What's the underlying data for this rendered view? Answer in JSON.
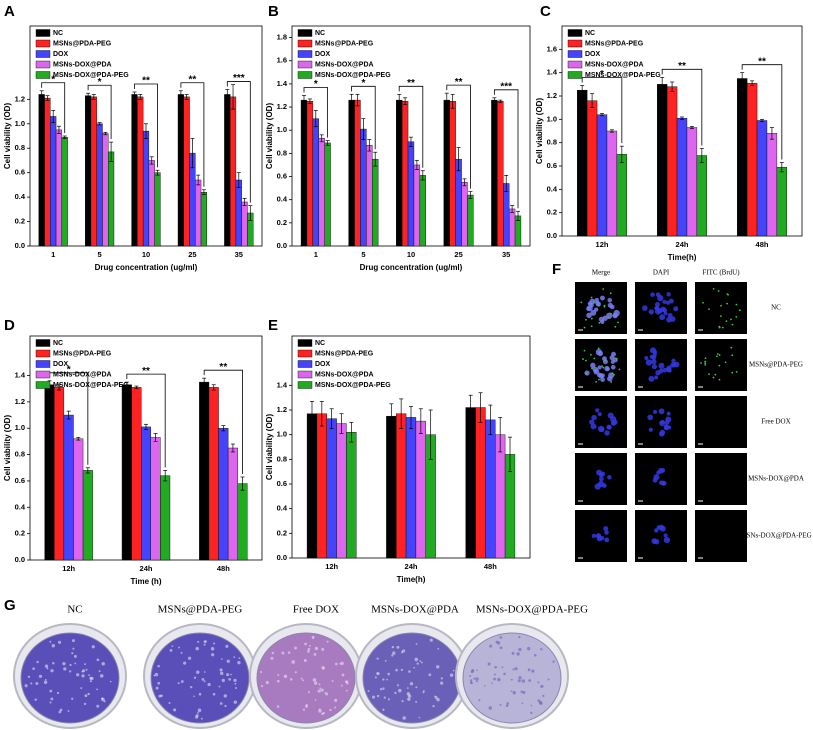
{
  "chart_data": [
    {
      "type": "bar",
      "panel": "A",
      "xlabel": "Drug concentration (ug/ml)",
      "ylabel": "Cell viability (OD)",
      "categories": [
        "1",
        "5",
        "10",
        "25",
        "35"
      ],
      "series": [
        {
          "name": "NC",
          "color": "#000000",
          "values": [
            1.24,
            1.23,
            1.24,
            1.24,
            1.24
          ],
          "errors": [
            0.03,
            0.02,
            0.02,
            0.03,
            0.04
          ]
        },
        {
          "name": "MSNs@PDA-PEG",
          "color": "#ff2222",
          "values": [
            1.21,
            1.22,
            1.22,
            1.22,
            1.22
          ],
          "errors": [
            0.02,
            0.02,
            0.02,
            0.02,
            0.1
          ]
        },
        {
          "name": "DOX",
          "color": "#4444ff",
          "values": [
            1.06,
            1.0,
            0.94,
            0.76,
            0.54
          ],
          "errors": [
            0.05,
            0.01,
            0.06,
            0.12,
            0.06
          ]
        },
        {
          "name": "MSNs-DOX@PDA",
          "color": "#dd66ee",
          "values": [
            0.95,
            0.92,
            0.7,
            0.54,
            0.36
          ],
          "errors": [
            0.03,
            0.01,
            0.03,
            0.04,
            0.03
          ]
        },
        {
          "name": "MSNs-DOX@PDA-PEG",
          "color": "#22aa22",
          "values": [
            0.89,
            0.77,
            0.6,
            0.44,
            0.27
          ],
          "errors": [
            0.01,
            0.08,
            0.02,
            0.02,
            0.06
          ]
        }
      ],
      "annotations": [
        "*",
        "*",
        "**",
        "**",
        "***"
      ],
      "ylim": [
        0,
        1.8
      ],
      "yticks": [
        {
          "value": 0,
          "label": "0.0"
        },
        {
          "value": 0.2,
          "label": "0.2"
        },
        {
          "value": 0.4,
          "label": "0.4"
        },
        {
          "value": 0.6,
          "label": "0.6"
        },
        {
          "value": 0.8,
          "label": "0.8"
        },
        {
          "value": 1,
          "label": "1.0"
        },
        {
          "value": 1.2,
          "label": "1.2"
        }
      ]
    },
    {
      "type": "bar",
      "panel": "B",
      "xlabel": "Drug concentration (ug/ml)",
      "ylabel": "Cell viability (OD)",
      "categories": [
        "1",
        "5",
        "10",
        "25",
        "35"
      ],
      "series": [
        {
          "name": "NC",
          "color": "#000000",
          "values": [
            1.26,
            1.26,
            1.26,
            1.26,
            1.26
          ],
          "errors": [
            0.04,
            0.05,
            0.05,
            0.06,
            0.02
          ]
        },
        {
          "name": "MSNs@PDA-PEG",
          "color": "#ff2222",
          "values": [
            1.25,
            1.26,
            1.25,
            1.25,
            1.25
          ],
          "errors": [
            0.02,
            0.05,
            0.03,
            0.06,
            0.01
          ]
        },
        {
          "name": "DOX",
          "color": "#4444ff",
          "values": [
            1.1,
            1.01,
            0.9,
            0.75,
            0.54
          ],
          "errors": [
            0.07,
            0.09,
            0.04,
            0.1,
            0.07
          ]
        },
        {
          "name": "MSNs-DOX@PDA",
          "color": "#dd66ee",
          "values": [
            0.93,
            0.87,
            0.7,
            0.55,
            0.32
          ],
          "errors": [
            0.03,
            0.05,
            0.04,
            0.03,
            0.03
          ]
        },
        {
          "name": "MSNs-DOX@PDA-PEG",
          "color": "#22aa22",
          "values": [
            0.89,
            0.75,
            0.61,
            0.44,
            0.26
          ],
          "errors": [
            0.02,
            0.06,
            0.04,
            0.03,
            0.04
          ]
        }
      ],
      "annotations": [
        "*",
        "*",
        "**",
        "**",
        "***"
      ],
      "ylim": [
        0,
        1.9
      ],
      "yticks": [
        {
          "value": 0,
          "label": "0.0"
        },
        {
          "value": 0.2,
          "label": "0.2"
        },
        {
          "value": 0.4,
          "label": "0.4"
        },
        {
          "value": 0.6,
          "label": "0.6"
        },
        {
          "value": 0.8,
          "label": "0.8"
        },
        {
          "value": 1,
          "label": "1.0"
        },
        {
          "value": 1.2,
          "label": "1.2"
        },
        {
          "value": 1.4,
          "label": "1.4"
        },
        {
          "value": 1.6,
          "label": "1.6"
        },
        {
          "value": 1.8,
          "label": "1.8"
        }
      ]
    },
    {
      "type": "bar",
      "panel": "C",
      "xlabel": "Time(h)",
      "ylabel": "Cell viability (OD)",
      "categories": [
        "12h",
        "24h",
        "48h"
      ],
      "series": [
        {
          "name": "NC",
          "color": "#000000",
          "values": [
            1.25,
            1.3,
            1.35
          ],
          "errors": [
            0.04,
            0.06,
            0.05
          ]
        },
        {
          "name": "MSNs@PDA-PEG",
          "color": "#ff2222",
          "values": [
            1.16,
            1.28,
            1.31
          ],
          "errors": [
            0.06,
            0.04,
            0.02
          ]
        },
        {
          "name": "DOX",
          "color": "#4444ff",
          "values": [
            1.04,
            1.01,
            0.99
          ],
          "errors": [
            0.01,
            0.01,
            0.01
          ]
        },
        {
          "name": "MSNs-DOX@PDA",
          "color": "#dd66ee",
          "values": [
            0.9,
            0.93,
            0.88
          ],
          "errors": [
            0.01,
            0.01,
            0.05
          ]
        },
        {
          "name": "MSNs-DOX@PDA-PEG",
          "color": "#22aa22",
          "values": [
            0.7,
            0.69,
            0.59
          ],
          "errors": [
            0.07,
            0.06,
            0.04
          ]
        }
      ],
      "annotations": [
        "*",
        "**",
        "**"
      ],
      "ylim": [
        0,
        1.8
      ],
      "yticks": [
        {
          "value": 0,
          "label": "0.0"
        },
        {
          "value": 0.2,
          "label": "0.2"
        },
        {
          "value": 0.4,
          "label": "0.4"
        },
        {
          "value": 0.6,
          "label": "0.6"
        },
        {
          "value": 0.8,
          "label": "0.8"
        },
        {
          "value": 1,
          "label": "1.0"
        },
        {
          "value": 1.2,
          "label": "1.2"
        },
        {
          "value": 1.4,
          "label": "1.4"
        },
        {
          "value": 1.6,
          "label": "1.6"
        }
      ]
    },
    {
      "type": "bar",
      "panel": "D",
      "xlabel": "Time (h)",
      "ylabel": "Cell viability (OD)",
      "categories": [
        "12h",
        "24h",
        "48h"
      ],
      "series": [
        {
          "name": "NC",
          "color": "#000000",
          "values": [
            1.33,
            1.33,
            1.35
          ],
          "errors": [
            0.03,
            0.02,
            0.03
          ]
        },
        {
          "name": "MSNs@PDA-PEG",
          "color": "#ff2222",
          "values": [
            1.31,
            1.31,
            1.31
          ],
          "errors": [
            0.02,
            0.01,
            0.02
          ]
        },
        {
          "name": "DOX",
          "color": "#4444ff",
          "values": [
            1.1,
            1.01,
            1.0
          ],
          "errors": [
            0.03,
            0.02,
            0.02
          ]
        },
        {
          "name": "MSNs-DOX@PDA",
          "color": "#dd66ee",
          "values": [
            0.92,
            0.93,
            0.85
          ],
          "errors": [
            0.01,
            0.03,
            0.03
          ]
        },
        {
          "name": "MSNs-DOX@PDA-PEG",
          "color": "#22aa22",
          "values": [
            0.68,
            0.64,
            0.58
          ],
          "errors": [
            0.02,
            0.04,
            0.05
          ]
        }
      ],
      "annotations": [
        "*",
        "**",
        "**"
      ],
      "ylim": [
        0,
        1.7
      ],
      "yticks": [
        {
          "value": 0,
          "label": "0.0"
        },
        {
          "value": 0.2,
          "label": "0.2"
        },
        {
          "value": 0.4,
          "label": "0.4"
        },
        {
          "value": 0.6,
          "label": "0.6"
        },
        {
          "value": 0.8,
          "label": "0.8"
        },
        {
          "value": 1,
          "label": "1.0"
        },
        {
          "value": 1.2,
          "label": "1.2"
        },
        {
          "value": 1.4,
          "label": "1.4"
        }
      ]
    },
    {
      "type": "bar",
      "panel": "E",
      "xlabel": "Time(h)",
      "ylabel": "Cell viability (OD)",
      "categories": [
        "12h",
        "24h",
        "48h"
      ],
      "series": [
        {
          "name": "NC",
          "color": "#000000",
          "values": [
            1.17,
            1.15,
            1.22
          ],
          "errors": [
            0.1,
            0.1,
            0.1
          ]
        },
        {
          "name": "MSNs@PDA-PEG",
          "color": "#ff2222",
          "values": [
            1.17,
            1.17,
            1.22
          ],
          "errors": [
            0.1,
            0.12,
            0.12
          ]
        },
        {
          "name": "DOX",
          "color": "#4444ff",
          "values": [
            1.13,
            1.14,
            1.12
          ],
          "errors": [
            0.08,
            0.09,
            0.12
          ]
        },
        {
          "name": "MSNs-DOX@PDA",
          "color": "#dd66ee",
          "values": [
            1.09,
            1.11,
            1.0
          ],
          "errors": [
            0.08,
            0.1,
            0.14
          ]
        },
        {
          "name": "MSNs-DOX@PDA-PEG",
          "color": "#22aa22",
          "values": [
            1.02,
            1.0,
            0.84
          ],
          "errors": [
            0.08,
            0.2,
            0.14
          ]
        }
      ],
      "ylim": [
        0,
        1.8
      ],
      "yticks": [
        {
          "value": 0,
          "label": "0.0"
        },
        {
          "value": 0.2,
          "label": "0.2"
        },
        {
          "value": 0.4,
          "label": "0.4"
        },
        {
          "value": 0.6,
          "label": "0.6"
        },
        {
          "value": 0.8,
          "label": "0.8"
        },
        {
          "value": 1,
          "label": "1.0"
        },
        {
          "value": 1.2,
          "label": "1.2"
        },
        {
          "value": 1.4,
          "label": "1.4"
        }
      ]
    }
  ],
  "panel_f": {
    "label": "F",
    "columns": [
      "Merge",
      "DAPI",
      "FITC (BrdU)"
    ],
    "rows": [
      "NC",
      "MSNs@PDA-PEG",
      "Free DOX",
      "MSNs-DOX@PDA",
      "MSNs-DOX@PDA-PEG"
    ]
  },
  "panel_g": {
    "label": "G",
    "labels": [
      "NC",
      "MSNs@PDA-PEG",
      "Free DOX",
      "MSNs-DOX@PDA",
      "MSNs-DOX@PDA-PEG"
    ]
  }
}
